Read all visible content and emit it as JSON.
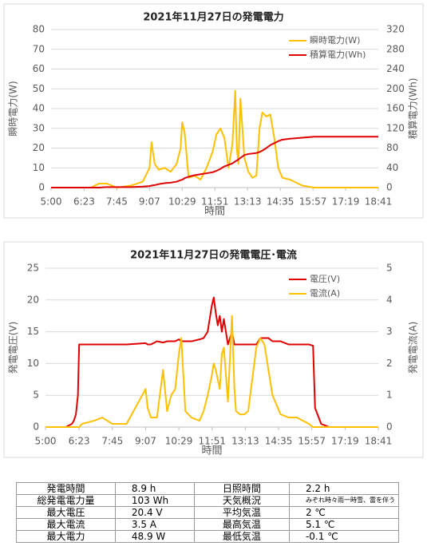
{
  "chart_data": [
    {
      "type": "line",
      "title": "2021年11月27日の発電電力",
      "xlabel": "時間",
      "ylabel": "瞬時電力(W)",
      "y2label": "積算電力(Wh)",
      "x": [
        300,
        400,
        420,
        440,
        465,
        500,
        530,
        547,
        552,
        560,
        570,
        585,
        600,
        615,
        625,
        629,
        635,
        645,
        660,
        675,
        690,
        705,
        715,
        725,
        735,
        745,
        755,
        762,
        766,
        770,
        775,
        780,
        785,
        795,
        805,
        815,
        823,
        830,
        840,
        850,
        860,
        870,
        880,
        900,
        930,
        960,
        1000,
        1121
      ],
      "xlim": [
        300,
        1121
      ],
      "xticks": [
        {
          "value": 300,
          "label": "5:00"
        },
        {
          "value": 383,
          "label": "6:23"
        },
        {
          "value": 465,
          "label": "7:45"
        },
        {
          "value": 547,
          "label": "9:07"
        },
        {
          "value": 629,
          "label": "10:29"
        },
        {
          "value": 711,
          "label": "11:51"
        },
        {
          "value": 793,
          "label": "13:13"
        },
        {
          "value": 875,
          "label": "14:35"
        },
        {
          "value": 957,
          "label": "15:57"
        },
        {
          "value": 1039,
          "label": "17:19"
        },
        {
          "value": 1121,
          "label": "18:41"
        }
      ],
      "ylim": [
        0,
        80
      ],
      "yticks": [
        0,
        10,
        20,
        30,
        40,
        50,
        60,
        70,
        80
      ],
      "y2lim": [
        0,
        320
      ],
      "y2ticks": [
        0,
        40,
        80,
        120,
        160,
        200,
        240,
        280,
        320
      ],
      "grid": true,
      "legend": "upper right",
      "series": [
        {
          "name": "瞬時電力(W)",
          "color": "#ffc000",
          "values": [
            0,
            0,
            2,
            2,
            0,
            1,
            3,
            10,
            23,
            12,
            9,
            10,
            8,
            12,
            20,
            33,
            28,
            5,
            6,
            4,
            10,
            18,
            27,
            30,
            25,
            10,
            22,
            49,
            20,
            12,
            45,
            30,
            15,
            8,
            5,
            6,
            30,
            38,
            36,
            37,
            25,
            10,
            5,
            4,
            1,
            0,
            0,
            0
          ]
        },
        {
          "name": "積算電力(Wh)",
          "color": "#e00000",
          "axis": "y2",
          "values": [
            0,
            0,
            0,
            1,
            1,
            1,
            2,
            3,
            4,
            5,
            7,
            9,
            10,
            12,
            15,
            16,
            19,
            22,
            25,
            27,
            29,
            31,
            34,
            38,
            43,
            46,
            49,
            53,
            55,
            57,
            60,
            63,
            66,
            68,
            69,
            70,
            72,
            75,
            80,
            86,
            90,
            94,
            97,
            99,
            101,
            103,
            103,
            103
          ]
        }
      ]
    },
    {
      "type": "line",
      "title": "2021年11月27日の発電電圧･電流",
      "xlabel": "時間",
      "ylabel": "発電電圧(V)",
      "y2label": "発電電流(A)",
      "x": [
        300,
        350,
        365,
        370,
        375,
        380,
        383,
        390,
        420,
        440,
        465,
        500,
        547,
        552,
        560,
        575,
        590,
        600,
        610,
        620,
        629,
        635,
        645,
        660,
        680,
        690,
        700,
        705,
        710,
        715,
        720,
        725,
        730,
        735,
        740,
        750,
        760,
        766,
        770,
        780,
        790,
        800,
        820,
        830,
        840,
        850,
        860,
        880,
        900,
        920,
        950,
        960,
        965,
        980,
        1000,
        1121
      ],
      "xlim": [
        300,
        1121
      ],
      "xticks": [
        {
          "value": 300,
          "label": "5:00"
        },
        {
          "value": 383,
          "label": "6:23"
        },
        {
          "value": 465,
          "label": "7:45"
        },
        {
          "value": 547,
          "label": "9:07"
        },
        {
          "value": 629,
          "label": "10:29"
        },
        {
          "value": 711,
          "label": "11:51"
        },
        {
          "value": 793,
          "label": "13:13"
        },
        {
          "value": 875,
          "label": "14:35"
        },
        {
          "value": 957,
          "label": "15:57"
        },
        {
          "value": 1039,
          "label": "17:19"
        },
        {
          "value": 1121,
          "label": "18:41"
        }
      ],
      "ylim": [
        0,
        25
      ],
      "yticks": [
        0,
        5,
        10,
        15,
        20,
        25
      ],
      "y2lim": [
        0,
        5
      ],
      "y2ticks": [
        0,
        1,
        2,
        3,
        4,
        5
      ],
      "grid": true,
      "legend": "upper right",
      "series": [
        {
          "name": "電圧(V)",
          "color": "#e00000",
          "values": [
            0,
            0,
            0.5,
            1,
            2,
            5,
            13,
            13,
            13,
            13,
            13,
            13,
            13.2,
            13,
            13,
            13.5,
            13.3,
            13.5,
            13.5,
            13.5,
            13.8,
            13.5,
            13.5,
            13.5,
            13.8,
            14,
            15,
            17,
            19,
            20.4,
            18,
            16,
            17.5,
            15,
            17,
            13,
            15,
            13,
            13,
            13,
            13,
            13,
            13,
            14,
            14,
            14,
            13.5,
            13.5,
            13,
            13,
            13,
            12.8,
            3,
            0.5,
            0,
            0
          ]
        },
        {
          "name": "電流(A)",
          "color": "#ffc000",
          "axis": "y2",
          "values": [
            0,
            0,
            0,
            0,
            0,
            0,
            0,
            0.1,
            0.2,
            0.3,
            0.1,
            0.1,
            1.2,
            0.6,
            0.3,
            0.3,
            1.8,
            0.5,
            1.0,
            1.2,
            2.3,
            2.8,
            0.5,
            0.3,
            0.2,
            0.5,
            1.0,
            1.3,
            1.6,
            2.0,
            1.8,
            1.5,
            1.2,
            2.3,
            2.5,
            0.8,
            3.5,
            1.2,
            0.5,
            0.4,
            0.4,
            0.5,
            2.5,
            2.8,
            2.6,
            1.8,
            1.0,
            0.4,
            0.3,
            0.3,
            0.1,
            0,
            0,
            0,
            0,
            0
          ]
        }
      ]
    }
  ],
  "table": {
    "rows": [
      [
        "発電時間",
        "8.9 h",
        "日照時間",
        "2.2 h"
      ],
      [
        "総発電電力量",
        "103 Wh",
        "天気概況",
        "みぞれ時々雨一時雪、雷を伴う"
      ],
      [
        "最大電圧",
        "20.4 V",
        "平均気温",
        "2 ℃"
      ],
      [
        "最大電流",
        "3.5 A",
        "最高気温",
        "5.1 ℃"
      ],
      [
        "最大電力",
        "48.9 W",
        "最低気温",
        "-0.1 ℃"
      ]
    ]
  }
}
